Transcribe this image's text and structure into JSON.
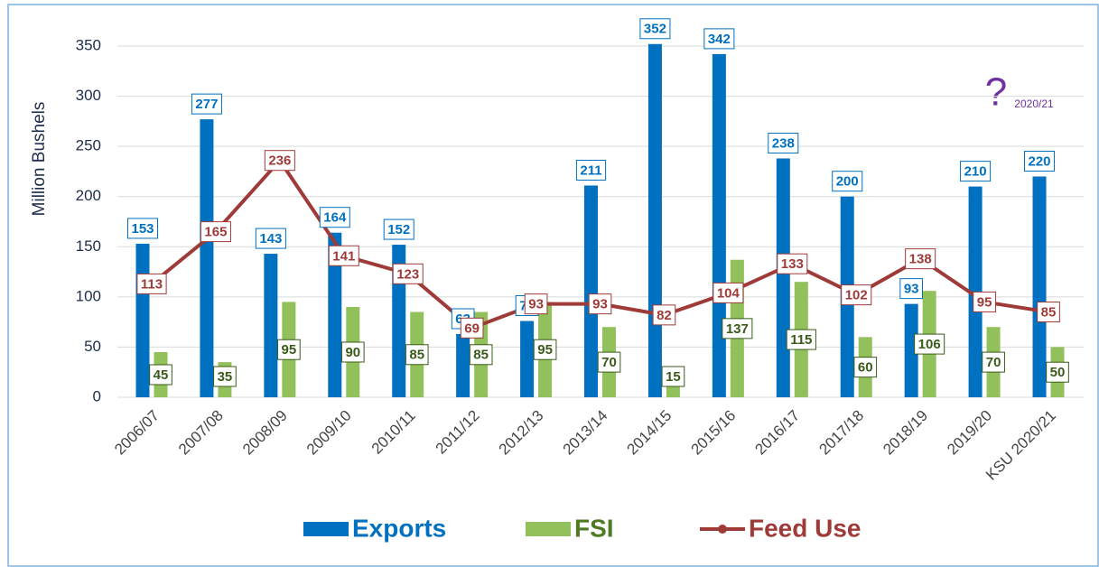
{
  "chart_data": {
    "type": "bar_line",
    "y_label": "Million Bushels",
    "categories": [
      "2006/07",
      "2007/08",
      "2008/09",
      "2009/10",
      "2010/11",
      "2011/12",
      "2012/13",
      "2013/14",
      "2014/15",
      "2015/16",
      "2016/17",
      "2017/18",
      "2018/19",
      "2019/20",
      "KSU 2020/21"
    ],
    "series": [
      {
        "name": "Exports",
        "type": "bar",
        "color": "#0070c0",
        "values": [
          153,
          277,
          143,
          164,
          152,
          63,
          76,
          211,
          352,
          342,
          238,
          200,
          93,
          210,
          220
        ]
      },
      {
        "name": "FSI",
        "type": "bar",
        "color": "#92c05a",
        "values": [
          45,
          35,
          95,
          90,
          85,
          85,
          95,
          70,
          15,
          137,
          115,
          60,
          106,
          70,
          50
        ]
      },
      {
        "name": "Feed Use",
        "type": "line",
        "color": "#9e3a38",
        "values": [
          113,
          165,
          236,
          141,
          123,
          69,
          93,
          93,
          82,
          104,
          133,
          102,
          138,
          95,
          85
        ]
      }
    ],
    "ylim": [
      0,
      350
    ],
    "yticks": [
      0,
      50,
      100,
      150,
      200,
      250,
      300,
      350
    ],
    "grid": true,
    "annotation": {
      "mark": "?",
      "text": "2020/21"
    }
  }
}
